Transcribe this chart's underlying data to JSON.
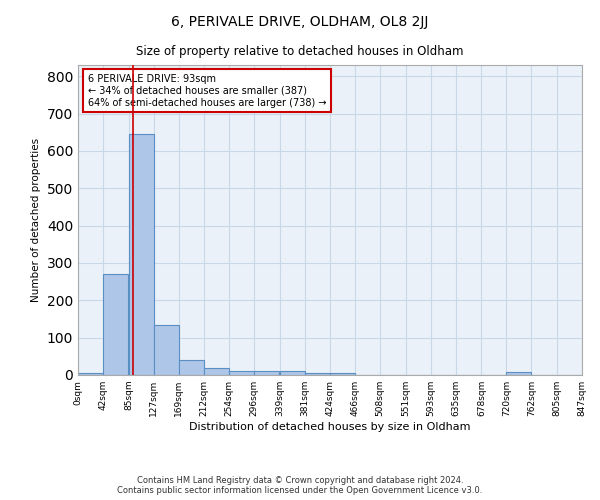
{
  "title": "6, PERIVALE DRIVE, OLDHAM, OL8 2JJ",
  "subtitle": "Size of property relative to detached houses in Oldham",
  "xlabel": "Distribution of detached houses by size in Oldham",
  "ylabel": "Number of detached properties",
  "footer_line1": "Contains HM Land Registry data © Crown copyright and database right 2024.",
  "footer_line2": "Contains public sector information licensed under the Open Government Licence v3.0.",
  "bin_edges": [
    0,
    42,
    85,
    127,
    169,
    212,
    254,
    296,
    339,
    381,
    424,
    466,
    508,
    551,
    593,
    635,
    678,
    720,
    762,
    805,
    847
  ],
  "bin_labels": [
    "0sqm",
    "42sqm",
    "85sqm",
    "127sqm",
    "169sqm",
    "212sqm",
    "254sqm",
    "296sqm",
    "339sqm",
    "381sqm",
    "424sqm",
    "466sqm",
    "508sqm",
    "551sqm",
    "593sqm",
    "635sqm",
    "678sqm",
    "720sqm",
    "762sqm",
    "805sqm",
    "847sqm"
  ],
  "bar_heights": [
    5,
    270,
    645,
    135,
    40,
    18,
    12,
    10,
    10,
    5,
    5,
    0,
    0,
    0,
    0,
    0,
    0,
    7,
    0,
    0
  ],
  "bar_color": "#aec6e8",
  "bar_edge_color": "#5a8fc3",
  "grid_color": "#c8d8e8",
  "background_color": "#eaf1f8",
  "property_line_x": 93,
  "property_line_color": "#cc0000",
  "annotation_text": "6 PERIVALE DRIVE: 93sqm\n← 34% of detached houses are smaller (387)\n64% of semi-detached houses are larger (738) →",
  "annotation_box_color": "#ffffff",
  "annotation_border_color": "#cc0000",
  "ylim": [
    0,
    830
  ],
  "yticks": [
    0,
    100,
    200,
    300,
    400,
    500,
    600,
    700,
    800
  ]
}
